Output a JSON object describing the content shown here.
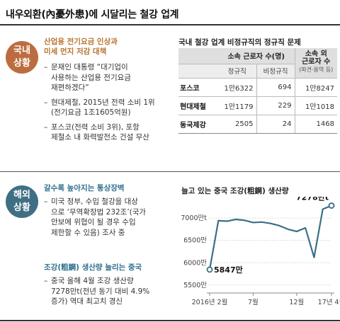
{
  "headline": "내우외환(內憂外患)에 시달리는 철강 업계",
  "domestic": {
    "badge": [
      "국내",
      "상황"
    ],
    "title": "산업용 전기요금 인상과\n미세 먼지 저감 대책",
    "bullets": [
      "문재인 대통령 “대기업이\n사용하는 산업용 전기요금\n재편하겠다”",
      "현대제철, 2015년 전력 소비 1위\n(전기요금 1조1605억원)",
      "포스코(전력 소비 3위), 포항\n제철소 내 화력발전소 건설 무산"
    ]
  },
  "table": {
    "title": "국내 철강 업계 비정규직의 정규직 문제",
    "header_group": "소속 근로자 수(명)",
    "header_outside": "소속 외\n근로자 수",
    "header_outside_sub": "(파견·용역 등)",
    "col_regular": "정규직",
    "col_irregular": "비정규직",
    "rows": [
      {
        "name": "포스코",
        "regular": "1만6322",
        "irregular": "694",
        "outside": "1만8247"
      },
      {
        "name": "현대제철",
        "regular": "1만1179",
        "irregular": "229",
        "outside": "1만1018"
      },
      {
        "name": "동국제강",
        "regular": "2505",
        "irregular": "24",
        "outside": "1468"
      }
    ]
  },
  "overseas": {
    "badge": [
      "해외",
      "상황"
    ],
    "section1_title": "갈수록 높아지는 통상장벽",
    "section1_bullets": [
      "미국 정부, 수입 철강을 대상\n으로 ‘무역확장법 232조’(국가\n안보에 위협이 될 경우 수입\n제한할 수 있음) 조사 중"
    ],
    "section2_title": "조강(粗鋼) 생산량 늘리는 중국",
    "section2_bullets": [
      "중국 올해 4월 조강 생산량\n7278만t(전년 동기 대비 4.9%\n증가) 역대 최고치 경신"
    ]
  },
  "chart_data": {
    "type": "line",
    "title": "늘고 있는 중국 조강(粗鋼) 생산량",
    "x_ticks": [
      "2016년 2월",
      "7월",
      "12월",
      "17년 4월"
    ],
    "x_tick_index": [
      0,
      5,
      10,
      14
    ],
    "y_ticks": [
      "5500만",
      "6000만",
      "6500만",
      "7000만t"
    ],
    "y_tick_values": [
      5500,
      6000,
      6500,
      7000
    ],
    "ylim": [
      5450,
      7350
    ],
    "values": [
      5847,
      6940,
      6930,
      6970,
      6950,
      6900,
      6910,
      6880,
      6830,
      6750,
      6700,
      6780,
      6120,
      7200,
      7278
    ],
    "annotations": [
      {
        "index": 0,
        "label": "5847만"
      },
      {
        "index": 14,
        "label": "7278만t"
      }
    ],
    "line_color": "#3a6f86"
  }
}
